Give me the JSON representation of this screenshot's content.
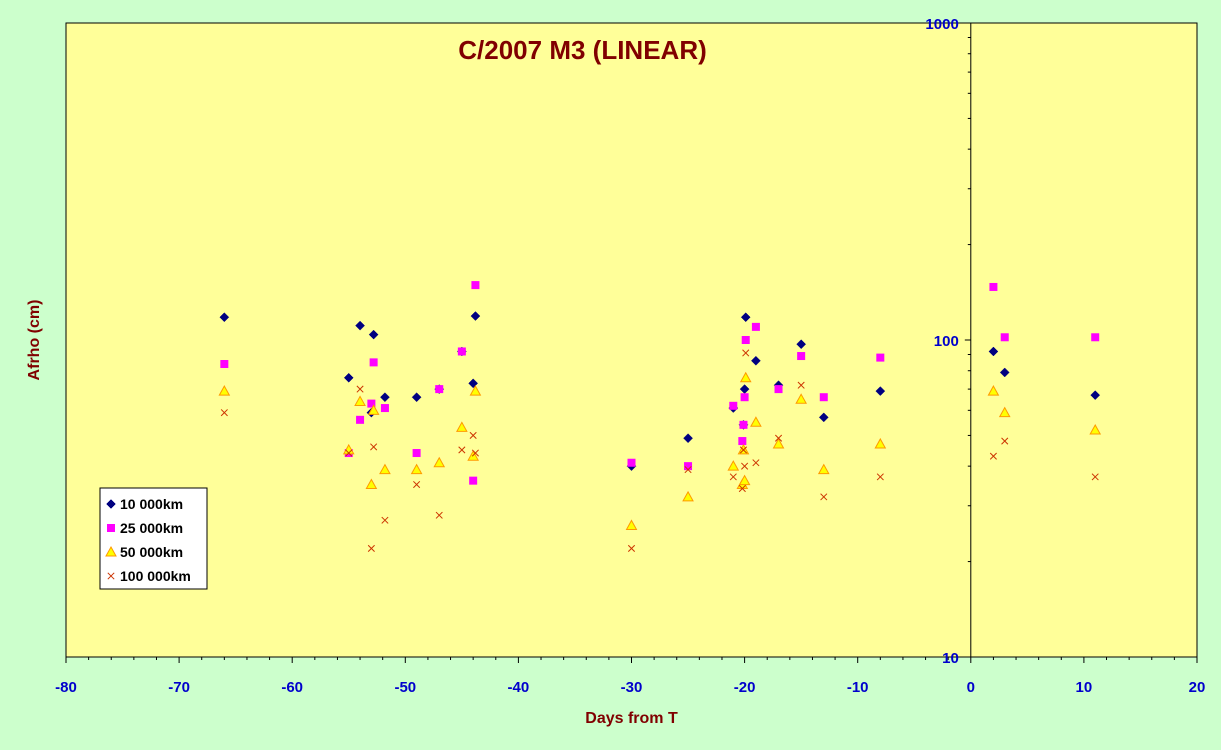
{
  "chart_data": {
    "type": "scatter",
    "title": "C/2007 M3 (LINEAR)",
    "xlabel": "Days from T",
    "ylabel": "Afrho (cm)",
    "xlim": [
      -80,
      20
    ],
    "ylim": [
      10,
      1000
    ],
    "yscale": "log",
    "xticks": [
      -80,
      -70,
      -60,
      -50,
      -40,
      -30,
      -20,
      -10,
      0,
      10,
      20
    ],
    "yticks": [
      10,
      100,
      1000
    ],
    "grid": false,
    "legend_position": "bottom-left",
    "plot_background": "#ffff99",
    "page_background": "#ccffcc",
    "series": [
      {
        "name": "10 000km",
        "marker": "diamond",
        "color": "#000080",
        "points": [
          [
            -66,
            118
          ],
          [
            -55,
            76
          ],
          [
            -54,
            111
          ],
          [
            -53,
            59
          ],
          [
            -52.8,
            104
          ],
          [
            -51.8,
            66
          ],
          [
            -49,
            66
          ],
          [
            -47,
            70
          ],
          [
            -45,
            92
          ],
          [
            -44,
            73
          ],
          [
            -43.8,
            119
          ],
          [
            -30,
            40
          ],
          [
            -25,
            49
          ],
          [
            -21,
            61
          ],
          [
            -20.1,
            54
          ],
          [
            -20,
            70
          ],
          [
            -19.9,
            118
          ],
          [
            -19,
            86
          ],
          [
            -17,
            72
          ],
          [
            -15,
            97
          ],
          [
            -13,
            57
          ],
          [
            -8,
            69
          ],
          [
            2,
            92
          ],
          [
            3,
            79
          ],
          [
            11,
            67
          ]
        ]
      },
      {
        "name": "25 000km",
        "marker": "square",
        "color": "#ff00ff",
        "points": [
          [
            -66,
            84
          ],
          [
            -55,
            44
          ],
          [
            -54,
            56
          ],
          [
            -53,
            63
          ],
          [
            -52.8,
            85
          ],
          [
            -51.8,
            61
          ],
          [
            -49,
            44
          ],
          [
            -47,
            70
          ],
          [
            -45,
            92
          ],
          [
            -44,
            36
          ],
          [
            -43.8,
            149
          ],
          [
            -30,
            41
          ],
          [
            -25,
            40
          ],
          [
            -21,
            62
          ],
          [
            -20.2,
            48
          ],
          [
            -20.1,
            54
          ],
          [
            -20,
            66
          ],
          [
            -19.9,
            100
          ],
          [
            -19,
            110
          ],
          [
            -17,
            70
          ],
          [
            -15,
            89
          ],
          [
            -13,
            66
          ],
          [
            -8,
            88
          ],
          [
            2,
            147
          ],
          [
            3,
            102
          ],
          [
            11,
            102
          ]
        ]
      },
      {
        "name": "50 000km",
        "marker": "triangle",
        "color": "#ff9900",
        "points": [
          [
            -66,
            69
          ],
          [
            -55,
            45
          ],
          [
            -54,
            64
          ],
          [
            -53,
            35
          ],
          [
            -52.8,
            60
          ],
          [
            -51.8,
            39
          ],
          [
            -49,
            39
          ],
          [
            -47,
            41
          ],
          [
            -45,
            53
          ],
          [
            -44,
            43
          ],
          [
            -43.8,
            69
          ],
          [
            -30,
            26
          ],
          [
            -25,
            32
          ],
          [
            -21,
            40
          ],
          [
            -20.2,
            35
          ],
          [
            -20.1,
            45
          ],
          [
            -20,
            36
          ],
          [
            -19.9,
            76
          ],
          [
            -19,
            55
          ],
          [
            -17,
            47
          ],
          [
            -15,
            65
          ],
          [
            -13,
            39
          ],
          [
            -8,
            47
          ],
          [
            2,
            69
          ],
          [
            3,
            59
          ],
          [
            11,
            52
          ]
        ]
      },
      {
        "name": "100 000km",
        "marker": "cross",
        "color": "#cc3300",
        "points": [
          [
            -66,
            59
          ],
          [
            -55,
            44
          ],
          [
            -54,
            70
          ],
          [
            -53,
            22
          ],
          [
            -52.8,
            46
          ],
          [
            -51.8,
            27
          ],
          [
            -49,
            35
          ],
          [
            -47,
            28
          ],
          [
            -45,
            45
          ],
          [
            -44,
            50
          ],
          [
            -43.8,
            44
          ],
          [
            -30,
            22
          ],
          [
            -25,
            39
          ],
          [
            -21,
            37
          ],
          [
            -20.2,
            34
          ],
          [
            -20.1,
            45
          ],
          [
            -20,
            40
          ],
          [
            -19.9,
            91
          ],
          [
            -19,
            41
          ],
          [
            -17,
            49
          ],
          [
            -15,
            72
          ],
          [
            -13,
            32
          ],
          [
            -8,
            37
          ],
          [
            2,
            43
          ],
          [
            3,
            48
          ],
          [
            11,
            37
          ]
        ]
      }
    ]
  }
}
